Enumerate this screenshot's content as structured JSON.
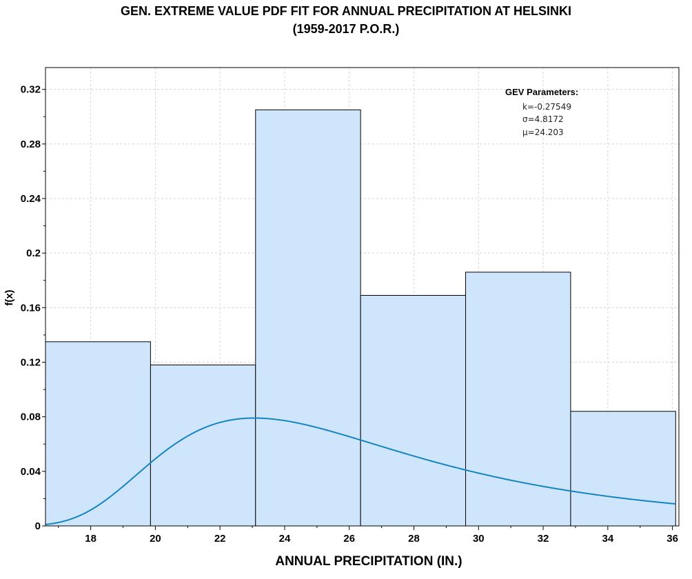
{
  "title_line1": "GEN. EXTREME VALUE PDF FIT FOR ANNUAL PRECIPITATION AT HELSINKI",
  "title_line2": "(1959-2017 P.O.R.)",
  "chart_data": {
    "type": "bar",
    "title": "GEN. EXTREME VALUE PDF FIT FOR ANNUAL PRECIPITATION AT HELSINKI (1959-2017 P.O.R.)",
    "xlabel": "ANNUAL PRECIPITATION (IN.)",
    "ylabel": "f(x)",
    "xlim": [
      16.6,
      36.2
    ],
    "ylim": [
      0,
      0.336
    ],
    "x_ticks": [
      "18",
      "20",
      "22",
      "24",
      "26",
      "28",
      "30",
      "32",
      "34",
      "36"
    ],
    "y_ticks": [
      "0",
      "0.04",
      "0.08",
      "0.12",
      "0.16",
      "0.2",
      "0.24",
      "0.28",
      "0.32"
    ],
    "grid": true,
    "histogram": {
      "bin_edges": [
        16.6,
        19.85,
        23.1,
        26.35,
        29.6,
        32.85,
        36.1
      ],
      "values": [
        0.135,
        0.118,
        0.305,
        0.169,
        0.186,
        0.084
      ]
    },
    "fitted_curve": {
      "distribution": "GEV",
      "k": -0.27549,
      "sigma": 4.8172,
      "mu": 24.203
    },
    "annotation": {
      "header": "GEV Parameters:",
      "lines": [
        "k=-0.27549",
        "σ=4.8172",
        "μ=24.203"
      ]
    },
    "colors": {
      "bar_fill": "#cfe5fb",
      "bar_stroke": "#000000",
      "curve": "#1384c0",
      "grid": "#d4d4d4"
    }
  }
}
